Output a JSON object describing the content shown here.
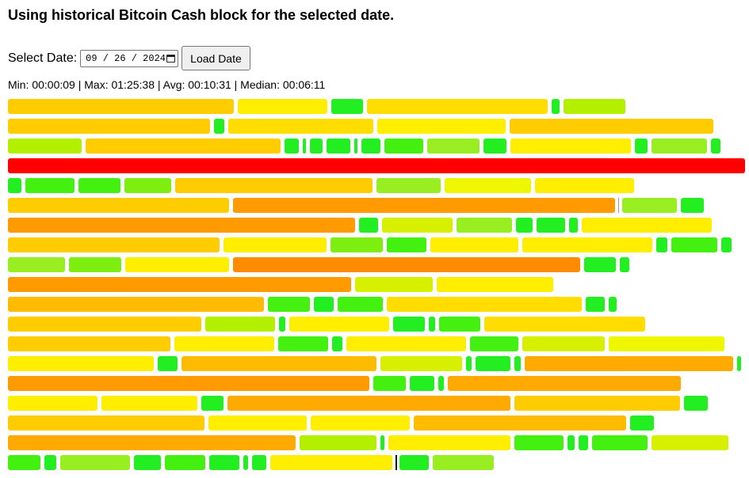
{
  "header": {
    "title": "Using historical Bitcoin Cash block for the selected date."
  },
  "controls": {
    "date_label": "Select Date:",
    "date_value": "09 / 26 / 2024",
    "calendar_icon": "calendar-icon",
    "load_button_label": "Load Date"
  },
  "stats": {
    "text": "Min: 00:00:09 | Max: 01:25:38 | Avg: 00:10:31 | Median: 00:06:11"
  },
  "palette": {
    "a": "#22ee22",
    "b": "#44f010",
    "c": "#7eee10",
    "d": "#99ee22",
    "e": "#b2f000",
    "f": "#d6f000",
    "g": "#eef600",
    "h": "#ffee00",
    "i": "#ffdd00",
    "j": "#ffcc00",
    "k": "#ffbb00",
    "l": "#ffaa00",
    "m": "#ff9a00",
    "n": "#ff8c00",
    "o": "#ff0000"
  },
  "block_rows": [
    [
      "j:285",
      "h:113",
      "a:40",
      "i:228",
      "a:10",
      "e:78"
    ],
    [
      "j:255",
      "a:13",
      "i:183",
      "h:162",
      "j:257"
    ],
    [
      "e:93",
      "j:246",
      "a:18",
      "a:4",
      "a:16",
      "a:30",
      "a:4",
      "a:24",
      "b:49",
      "d:66",
      "a:29",
      "h:152",
      "a:16",
      "d:70",
      "a:12"
    ],
    [
      "o:930"
    ],
    [
      "a:17",
      "b:62",
      "b:53",
      "c:59",
      "j:249",
      "d:81",
      "g:109",
      "h:125"
    ],
    [
      "j:279",
      "m:482",
      "marker",
      "d:69",
      "a:29"
    ],
    [
      "m:438",
      "a:24",
      "f:89",
      "d:70",
      "a:21",
      "a:36",
      "a:11",
      "h:164"
    ],
    [
      "j:267",
      "h:130",
      "c:66",
      "b:50",
      "h:111",
      "h:164",
      "a:14",
      "b:58",
      "a:13"
    ],
    [
      "d:72",
      "c:66",
      "h:131",
      "n:438",
      "a:40",
      "a:12"
    ],
    [
      "m:433",
      "f:98",
      "h:147"
    ],
    [
      "k:323",
      "b:53",
      "a:25",
      "b:57",
      "i:246",
      "a:24",
      "a:10"
    ],
    [
      "j:244",
      "e:88",
      "a:8",
      "h:126",
      "a:40",
      "a:8",
      "b:52",
      "i:203"
    ],
    [
      "j:205",
      "h:126",
      "b:63",
      "a:13",
      "h:151",
      "b:61",
      "f:104",
      "g:146"
    ],
    [
      "h:184",
      "a:25",
      "k:246",
      "f:103",
      "a:7",
      "a:44",
      "a:8",
      "l:263",
      "a:5"
    ],
    [
      "m:456",
      "b:41",
      "a:31",
      "a:7",
      "l:294"
    ],
    [
      "h:113",
      "h:121",
      "a:28",
      "l:357",
      "j:209",
      "a:30"
    ],
    [
      "j:248",
      "h:124",
      "h:125",
      "k:268",
      "a:30"
    ],
    [
      "l:363",
      "e:97",
      "a:5",
      "h:154",
      "b:62",
      "a:9",
      "a:12",
      "b:70",
      "f:97"
    ],
    [
      "b:41",
      "a:15",
      "d:88",
      "a:34",
      "b:51",
      "a:38",
      "a:6",
      "a:18",
      "h:154",
      "cursor",
      "a:37",
      "d:77"
    ]
  ]
}
